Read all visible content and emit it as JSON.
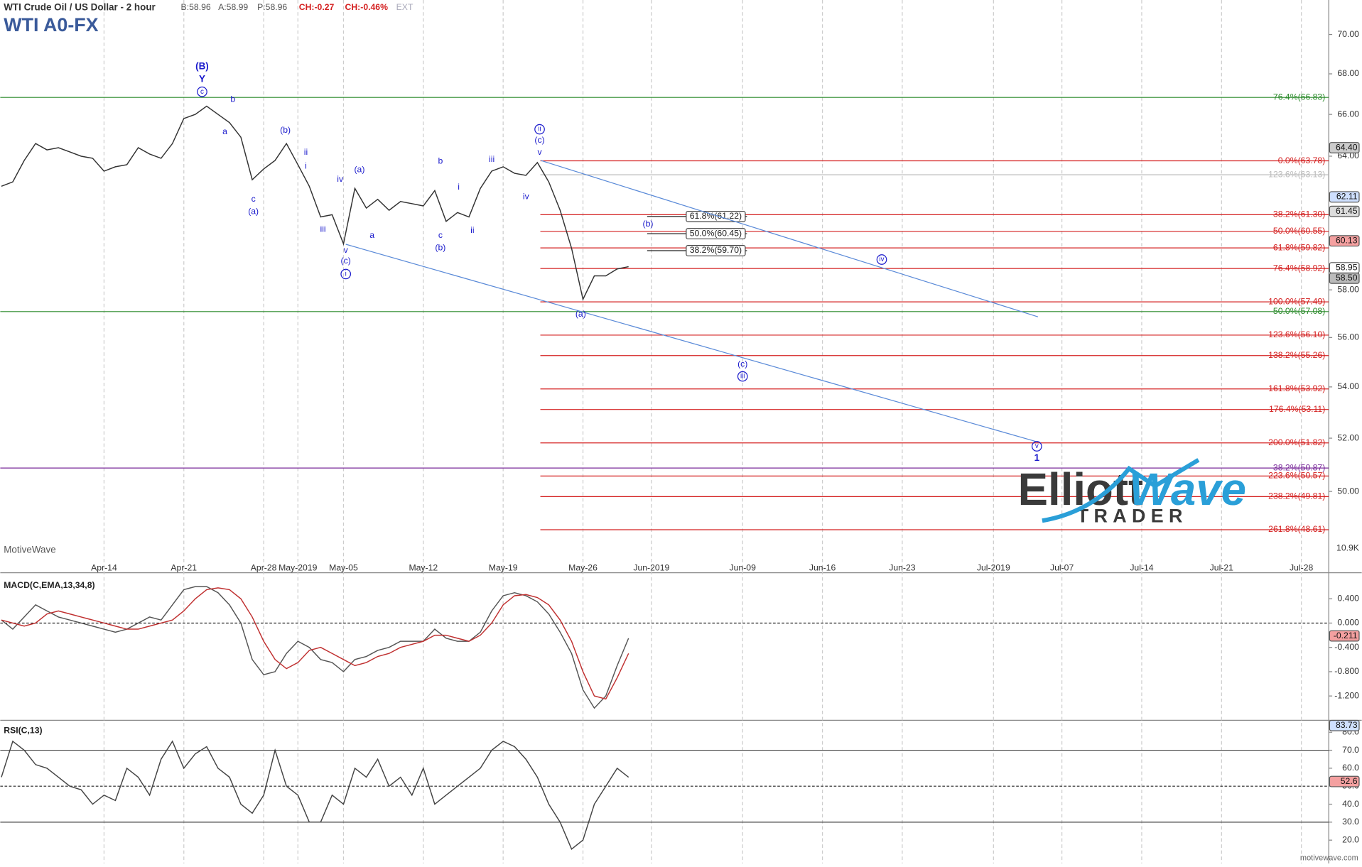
{
  "header": {
    "title": "WTI Crude Oil / US Dollar - 2 hour",
    "quote": [
      "B:58.96",
      "A:58.99",
      "P:58.96"
    ],
    "change": [
      "CH:-0.27",
      "CH:-0.46%"
    ],
    "ext": "EXT",
    "symbol": "WTI A0-FX"
  },
  "chart_data": [
    {
      "type": "line",
      "name": "price",
      "log_scale": true,
      "x": [
        -9,
        -8,
        -7,
        -6,
        -5,
        -4,
        -3,
        -2,
        -1,
        0,
        1,
        2,
        3,
        4,
        5,
        6,
        7,
        8,
        9,
        10,
        11,
        12,
        13,
        14,
        15,
        16,
        17,
        18,
        19,
        20,
        21,
        22,
        23,
        24,
        25,
        26,
        27,
        28,
        29,
        30,
        31,
        32,
        33,
        34,
        35,
        36,
        37,
        38,
        39,
        40,
        41,
        42,
        43,
        44,
        45,
        46
      ],
      "values": [
        62.6,
        62.8,
        63.8,
        64.6,
        64.3,
        64.4,
        64.2,
        64.0,
        63.9,
        63.3,
        63.5,
        63.6,
        64.4,
        64.1,
        63.9,
        64.6,
        65.8,
        66.0,
        66.4,
        66.0,
        65.6,
        64.9,
        62.9,
        63.4,
        63.8,
        64.6,
        63.6,
        62.6,
        61.2,
        61.3,
        60.0,
        62.5,
        61.6,
        62.0,
        61.5,
        61.9,
        61.8,
        61.7,
        62.4,
        61.0,
        61.4,
        61.2,
        62.5,
        63.3,
        63.5,
        63.2,
        63.1,
        63.7,
        62.8,
        61.5,
        59.8,
        57.6,
        58.6,
        58.6,
        58.9,
        59.0
      ],
      "color": "#333333",
      "xlim": [
        -9.1,
        107.4
      ],
      "xticks": [
        {
          "value": 0,
          "label": "Apr-14"
        },
        {
          "value": 7,
          "label": "Apr-21"
        },
        {
          "value": 14,
          "label": "Apr-28"
        },
        {
          "value": 17,
          "label": "May-2019"
        },
        {
          "value": 21,
          "label": "May-05"
        },
        {
          "value": 28,
          "label": "May-12"
        },
        {
          "value": 35,
          "label": "May-19"
        },
        {
          "value": 42,
          "label": "May-26"
        },
        {
          "value": 48,
          "label": "Jun-2019"
        },
        {
          "value": 56,
          "label": "Jun-09"
        },
        {
          "value": 63,
          "label": "Jun-16"
        },
        {
          "value": 70,
          "label": "Jun-23"
        },
        {
          "value": 78,
          "label": "Jul-2019"
        },
        {
          "value": 84,
          "label": "Jul-07"
        },
        {
          "value": 91,
          "label": "Jul-14"
        },
        {
          "value": 98,
          "label": "Jul-21"
        },
        {
          "value": 105,
          "label": "Jul-28"
        }
      ],
      "ylim": [
        47.7,
        71.8
      ],
      "yticks": [
        {
          "value": 70,
          "label": "70.00"
        },
        {
          "value": 68,
          "label": "68.00"
        },
        {
          "value": 66,
          "label": "66.00"
        },
        {
          "value": 64,
          "label": "64.00"
        },
        {
          "value": 58,
          "label": "58.00"
        },
        {
          "value": 56,
          "label": "56.00"
        },
        {
          "value": 54,
          "label": "54.00"
        },
        {
          "value": 52,
          "label": "52.00"
        },
        {
          "value": 50,
          "label": "50.00"
        }
      ],
      "badges": [
        {
          "value": 64.4,
          "label": "64.40",
          "color": "#cccccc"
        },
        {
          "value": 62.11,
          "label": "62.11",
          "color": "#cfe0ff"
        },
        {
          "value": 61.45,
          "label": "61.45",
          "color": "#dddddd"
        },
        {
          "value": 60.13,
          "label": "60.13",
          "color": "#f4a0a0"
        },
        {
          "value": 58.95,
          "label": "58.95",
          "color": "#ffffff"
        },
        {
          "value": 58.5,
          "label": "58.50",
          "color": "#bbbbbb"
        }
      ],
      "volume_label": "10.9K",
      "fib_levels": [
        {
          "value": 66.83,
          "label": "76.4%(66.83)",
          "color": "#2a8a2a",
          "full": true
        },
        {
          "value": 63.78,
          "label": "0.0%(63.78)",
          "color": "#d42020"
        },
        {
          "value": 63.13,
          "label": "123.6%(63.13)",
          "color": "#bbbbbb"
        },
        {
          "value": 61.3,
          "label": "38.2%(61.30)",
          "color": "#d42020"
        },
        {
          "value": 60.55,
          "label": "50.0%(60.55)",
          "color": "#d42020"
        },
        {
          "value": 59.82,
          "label": "61.8%(59.82)",
          "color": "#d42020"
        },
        {
          "value": 58.92,
          "label": "76.4%(58.92)",
          "color": "#d42020"
        },
        {
          "value": 57.49,
          "label": "100.0%(57.49)",
          "color": "#d42020"
        },
        {
          "value": 57.08,
          "label": "50.0%(57.08)",
          "color": "#2a8a2a",
          "full": true
        },
        {
          "value": 56.1,
          "label": "123.6%(56.10)",
          "color": "#d42020"
        },
        {
          "value": 55.26,
          "label": "138.2%(55.26)",
          "color": "#d42020"
        },
        {
          "value": 53.92,
          "label": "161.8%(53.92)",
          "color": "#d42020"
        },
        {
          "value": 53.11,
          "label": "176.4%(53.11)",
          "color": "#d42020"
        },
        {
          "value": 51.82,
          "label": "200.0%(51.82)",
          "color": "#d42020"
        },
        {
          "value": 50.87,
          "label": "38.2%(50.87)",
          "color": "#7a2a9a",
          "full": true
        },
        {
          "value": 50.57,
          "label": "223.6%(50.57)",
          "color": "#d42020"
        },
        {
          "value": 49.81,
          "label": "238.2%(49.81)",
          "color": "#d42020"
        },
        {
          "value": 48.61,
          "label": "261.8%(48.61)",
          "color": "#d42020"
        }
      ],
      "boxed_levels": [
        {
          "value": 61.22,
          "label": "61.8%(61.22)"
        },
        {
          "value": 60.45,
          "label": "50.0%(60.45)"
        },
        {
          "value": 59.7,
          "label": "38.2%(59.70)"
        }
      ],
      "channel_lines": [
        {
          "x": [
            38.3,
            81.9
          ],
          "y": [
            63.8,
            56.86
          ]
        },
        {
          "x": [
            21.2,
            81.9
          ],
          "y": [
            59.98,
            51.85
          ]
        }
      ],
      "wave_labels": [
        {
          "text": "(B)",
          "x": 8.6,
          "y": 68.36,
          "bold": true
        },
        {
          "text": "Y",
          "x": 8.6,
          "y": 67.71,
          "bold": true
        },
        {
          "text": "c",
          "x": 8.6,
          "y": 67.11,
          "circled": true
        },
        {
          "text": "b",
          "x": 11.3,
          "y": 66.72
        },
        {
          "text": "a",
          "x": 10.6,
          "y": 65.16
        },
        {
          "text": "(b)",
          "x": 15.9,
          "y": 65.22
        },
        {
          "text": "ii",
          "x": 17.7,
          "y": 64.17
        },
        {
          "text": "i",
          "x": 17.7,
          "y": 63.52
        },
        {
          "text": "iv",
          "x": 20.7,
          "y": 62.91
        },
        {
          "text": "(a)",
          "x": 22.4,
          "y": 63.36
        },
        {
          "text": "iii",
          "x": 19.2,
          "y": 60.64
        },
        {
          "text": "c",
          "x": 13.1,
          "y": 62.0
        },
        {
          "text": "(a)",
          "x": 13.1,
          "y": 61.44
        },
        {
          "text": "v",
          "x": 21.2,
          "y": 59.7
        },
        {
          "text": "(c)",
          "x": 21.2,
          "y": 59.24
        },
        {
          "text": "i",
          "x": 21.2,
          "y": 58.68,
          "circled": true
        },
        {
          "text": "a",
          "x": 23.5,
          "y": 60.37
        },
        {
          "text": "b",
          "x": 29.5,
          "y": 63.76
        },
        {
          "text": "i",
          "x": 31.1,
          "y": 62.55
        },
        {
          "text": "c",
          "x": 29.5,
          "y": 60.37
        },
        {
          "text": "(b)",
          "x": 29.5,
          "y": 59.81
        },
        {
          "text": "ii",
          "x": 32.3,
          "y": 60.58
        },
        {
          "text": "iii",
          "x": 34.0,
          "y": 63.84
        },
        {
          "text": "iv",
          "x": 37.0,
          "y": 62.11
        },
        {
          "text": "ii",
          "x": 38.2,
          "y": 65.28,
          "circled": true
        },
        {
          "text": "(c)",
          "x": 38.2,
          "y": 64.74
        },
        {
          "text": "v",
          "x": 38.2,
          "y": 64.17
        },
        {
          "text": "(b)",
          "x": 47.7,
          "y": 60.87
        },
        {
          "text": "iv",
          "x": 68.2,
          "y": 59.31,
          "circled": true
        },
        {
          "text": "(a)",
          "x": 41.8,
          "y": 56.96
        },
        {
          "text": "(c)",
          "x": 56.0,
          "y": 54.9
        },
        {
          "text": "iii",
          "x": 56.0,
          "y": 54.42,
          "circled": true
        },
        {
          "text": "v",
          "x": 81.8,
          "y": 51.69,
          "circled": true
        },
        {
          "text": "1",
          "x": 81.8,
          "y": 51.23,
          "bold": true
        }
      ]
    },
    {
      "type": "line",
      "name": "macd",
      "title": "MACD(C,EMA,13,34,8)",
      "series": [
        {
          "name": "MACD",
          "color": "#555555",
          "values": [
            0.05,
            -0.1,
            0.1,
            0.3,
            0.2,
            0.1,
            0.05,
            0.0,
            -0.05,
            -0.1,
            -0.15,
            -0.1,
            0.0,
            0.1,
            0.05,
            0.3,
            0.55,
            0.6,
            0.6,
            0.5,
            0.3,
            0.0,
            -0.6,
            -0.85,
            -0.8,
            -0.5,
            -0.3,
            -0.4,
            -0.6,
            -0.65,
            -0.8,
            -0.6,
            -0.55,
            -0.45,
            -0.4,
            -0.3,
            -0.3,
            -0.3,
            -0.1,
            -0.25,
            -0.3,
            -0.3,
            -0.15,
            0.2,
            0.45,
            0.5,
            0.45,
            0.35,
            0.15,
            -0.15,
            -0.5,
            -1.1,
            -1.4,
            -1.2,
            -0.7,
            -0.25
          ]
        },
        {
          "name": "Signal",
          "color": "#c03030",
          "values": [
            0.05,
            0.0,
            -0.05,
            0.0,
            0.15,
            0.2,
            0.15,
            0.1,
            0.05,
            0.0,
            -0.05,
            -0.1,
            -0.1,
            -0.05,
            0.0,
            0.05,
            0.2,
            0.4,
            0.55,
            0.58,
            0.55,
            0.4,
            0.1,
            -0.3,
            -0.6,
            -0.75,
            -0.65,
            -0.45,
            -0.4,
            -0.5,
            -0.6,
            -0.7,
            -0.65,
            -0.55,
            -0.5,
            -0.4,
            -0.35,
            -0.3,
            -0.2,
            -0.2,
            -0.25,
            -0.3,
            -0.2,
            0.0,
            0.3,
            0.45,
            0.47,
            0.42,
            0.3,
            0.05,
            -0.3,
            -0.8,
            -1.2,
            -1.25,
            -0.9,
            -0.5
          ]
        }
      ],
      "ylim": [
        -1.571,
        0.771
      ],
      "yticks": [
        {
          "value": 0.4,
          "label": "0.400"
        },
        {
          "value": 0,
          "label": "0.000"
        },
        {
          "value": -0.4,
          "label": "-0.400"
        },
        {
          "value": -0.8,
          "label": "-0.800"
        },
        {
          "value": -1.2,
          "label": "-1.200"
        }
      ],
      "badges": [
        {
          "value": -0.211,
          "label": "-0.211",
          "color": "#f4a0a0"
        }
      ]
    },
    {
      "type": "line",
      "name": "rsi",
      "title": "RSI(C,13)",
      "series": [
        {
          "name": "RSI",
          "color": "#444444",
          "values": [
            55,
            75,
            70,
            62,
            60,
            55,
            50,
            48,
            40,
            45,
            42,
            60,
            55,
            45,
            65,
            75,
            60,
            68,
            72,
            60,
            55,
            40,
            35,
            45,
            70,
            50,
            45,
            30,
            30,
            45,
            40,
            60,
            55,
            65,
            50,
            55,
            45,
            60,
            40,
            45,
            50,
            55,
            60,
            70,
            75,
            72,
            65,
            55,
            40,
            30,
            15,
            20,
            40,
            50,
            60,
            55
          ]
        }
      ],
      "ylim": [
        8,
        85.7
      ],
      "yticks": [
        {
          "value": 80,
          "label": "80.0"
        },
        {
          "value": 70,
          "label": "70.0"
        },
        {
          "value": 60,
          "label": "60.0"
        },
        {
          "value": 50,
          "label": "50.0"
        },
        {
          "value": 40,
          "label": "40.0"
        },
        {
          "value": 30,
          "label": "30.0"
        },
        {
          "value": 20,
          "label": "20.0"
        }
      ],
      "bands": [
        30,
        70
      ],
      "midline": 50,
      "badges": [
        {
          "value": 83.73,
          "label": "83.73",
          "color": "#cfe0ff"
        },
        {
          "value": 52.6,
          "label": "52.6",
          "color": "#f4a0a0"
        }
      ]
    }
  ],
  "footer": {
    "watermark": "MotiveWave",
    "site": "motivewave.com",
    "logo": [
      "Elliott",
      "Wave",
      "TRADER"
    ]
  }
}
